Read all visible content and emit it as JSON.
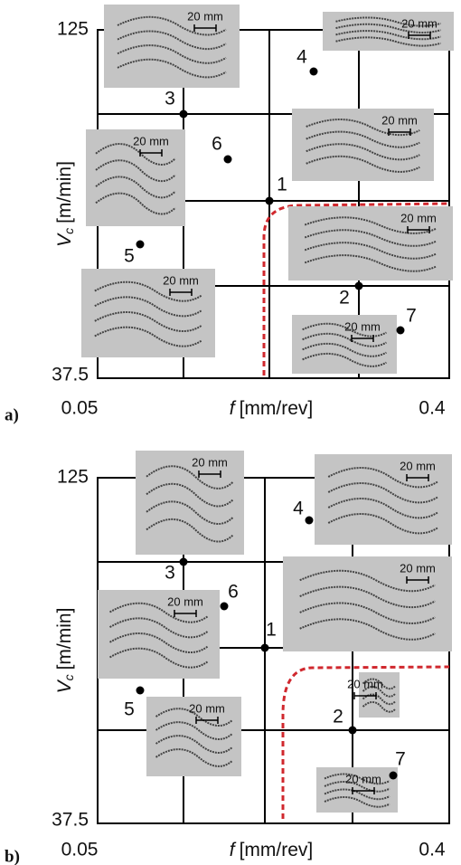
{
  "panels": [
    {
      "label": "a)",
      "y_axis": {
        "symbol": "V",
        "subscript": "c",
        "unit": "[m/min]",
        "top": "125",
        "bottom": "37.5"
      },
      "x_axis": {
        "symbol": "f",
        "unit": "[mm/rev]",
        "left": "0.05",
        "right": "0.4"
      },
      "points": [
        "1",
        "2",
        "3",
        "4",
        "5",
        "6",
        "7"
      ],
      "photos": [
        {
          "scale": "20 mm"
        },
        {
          "scale": "20 mm"
        },
        {
          "scale": "20 mm"
        },
        {
          "scale": "20 mm"
        },
        {
          "scale": "20 mm"
        },
        {
          "scale": "20 mm"
        },
        {
          "scale": "20 mm"
        }
      ]
    },
    {
      "label": "b)",
      "y_axis": {
        "symbol": "V",
        "subscript": "c",
        "unit": "[m/min]",
        "top": "125",
        "bottom": "37.5"
      },
      "x_axis": {
        "symbol": "f",
        "unit": "[mm/rev]",
        "left": "0.05",
        "right": "0.4"
      },
      "points": [
        "1",
        "2",
        "3",
        "4",
        "5",
        "6",
        "7"
      ],
      "photos": [
        {
          "scale": "20 mm"
        },
        {
          "scale": "20 mm"
        },
        {
          "scale": "20 mm"
        },
        {
          "scale": "20 mm"
        },
        {
          "scale": "20 mm"
        },
        {
          "scale": "20 mm"
        },
        {
          "scale": "20 mm"
        }
      ]
    }
  ]
}
